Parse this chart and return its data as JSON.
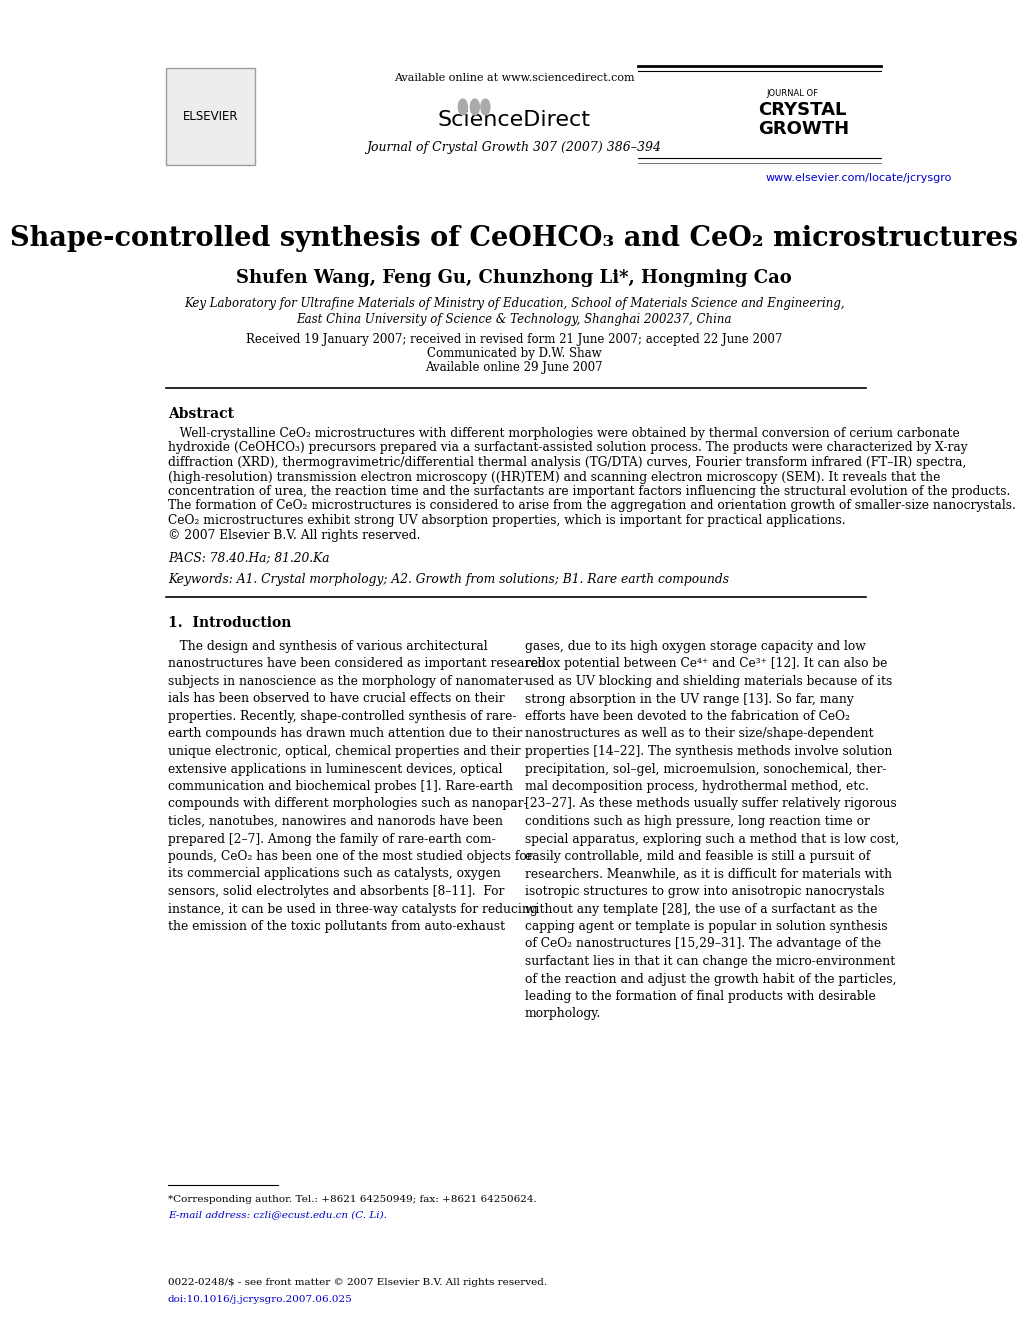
{
  "page_width": 9.92,
  "page_height": 13.23,
  "background_color": "#ffffff",
  "header_available_online": "Available online at www.sciencedirect.com",
  "header_journal_info": "Journal of Crystal Growth 307 (2007) 386–394",
  "header_journal_of": "JOURNAL OF",
  "header_crystal": "CRYSTAL",
  "header_growth": "GROWTH",
  "header_url": "www.elsevier.com/locate/jcrysgro",
  "header_elsevier": "ELSEVIER",
  "sciencedirect": "ScienceDirect",
  "title": "Shape-controlled synthesis of CeOHCO₃ and CeO₂ microstructures",
  "authors": "Shufen Wang, Feng Gu, Chunzhong Li*, Hongming Cao",
  "affiliation1": "Key Laboratory for Ultrafine Materials of Ministry of Education, School of Materials Science and Engineering,",
  "affiliation2": "East China University of Science & Technology, Shanghai 200237, China",
  "received": "Received 19 January 2007; received in revised form 21 June 2007; accepted 22 June 2007",
  "communicated": "Communicated by D.W. Shaw",
  "available_online2": "Available online 29 June 2007",
  "abstract_title": "Abstract",
  "abstract_lines": [
    "   Well-crystalline CeO₂ microstructures with different morphologies were obtained by thermal conversion of cerium carbonate",
    "hydroxide (CeOHCO₃) precursors prepared via a surfactant-assisted solution process. The products were characterized by X-ray",
    "diffraction (XRD), thermogravimetric/differential thermal analysis (TG/DTA) curves, Fourier transform infrared (FT–IR) spectra,",
    "(high-resolution) transmission electron microscopy ((HR)TEM) and scanning electron microscopy (SEM). It reveals that the",
    "concentration of urea, the reaction time and the surfactants are important factors influencing the structural evolution of the products.",
    "The formation of CeO₂ microstructures is considered to arise from the aggregation and orientation growth of smaller-size nanocrystals.",
    "CeO₂ microstructures exhibit strong UV absorption properties, which is important for practical applications.",
    "© 2007 Elsevier B.V. All rights reserved."
  ],
  "pacs": "PACS: 78.40.Ha; 81.20.Ka",
  "keywords": "Keywords: A1. Crystal morphology; A2. Growth from solutions; B1. Rare earth compounds",
  "section1_title": "1.  Introduction",
  "intro_left": "   The design and synthesis of various architectural\nnanostructures have been considered as important research\nsubjects in nanoscience as the morphology of nanomater-\nials has been observed to have crucial effects on their\nproperties. Recently, shape-controlled synthesis of rare-\nearth compounds has drawn much attention due to their\nunique electronic, optical, chemical properties and their\nextensive applications in luminescent devices, optical\ncommunication and biochemical probes [1]. Rare-earth\ncompounds with different morphologies such as nanopar-\nticles, nanotubes, nanowires and nanorods have been\nprepared [2–7]. Among the family of rare-earth com-\npounds, CeO₂ has been one of the most studied objects for\nits commercial applications such as catalysts, oxygen\nsensors, solid electrolytes and absorbents [8–11].  For\ninstance, it can be used in three-way catalysts for reducing\nthe emission of the toxic pollutants from auto-exhaust",
  "intro_right": "gases, due to its high oxygen storage capacity and low\nredox potential between Ce⁴⁺ and Ce³⁺ [12]. It can also be\nused as UV blocking and shielding materials because of its\nstrong absorption in the UV range [13]. So far, many\nefforts have been devoted to the fabrication of CeO₂\nnanostructures as well as to their size/shape-dependent\nproperties [14–22]. The synthesis methods involve solution\nprecipitation, sol–gel, microemulsion, sonochemical, ther-\nmal decomposition process, hydrothermal method, etc.\n[23–27]. As these methods usually suffer relatively rigorous\nconditions such as high pressure, long reaction time or\nspecial apparatus, exploring such a method that is low cost,\neasily controllable, mild and feasible is still a pursuit of\nresearchers. Meanwhile, as it is difficult for materials with\nisotropic structures to grow into anisotropic nanocrystals\nwithout any template [28], the use of a surfactant as the\ncapping agent or template is popular in solution synthesis\nof CeO₂ nanostructures [15,29–31]. The advantage of the\nsurfactant lies in that it can change the micro-environment\nof the reaction and adjust the growth habit of the particles,\nleading to the formation of final products with desirable\nmorphology.",
  "footnote": "*Corresponding author. Tel.: +8621 64250949; fax: +8621 64250624.",
  "footnote_email": "E-mail address: czli@ecust.edu.cn (C. Li).",
  "bottom_left1": "0022-0248/$ - see front matter © 2007 Elsevier B.V. All rights reserved.",
  "bottom_left2": "doi:10.1016/j.jcrysgro.2007.06.025",
  "link_color": "#0000cc",
  "text_color": "#000000"
}
